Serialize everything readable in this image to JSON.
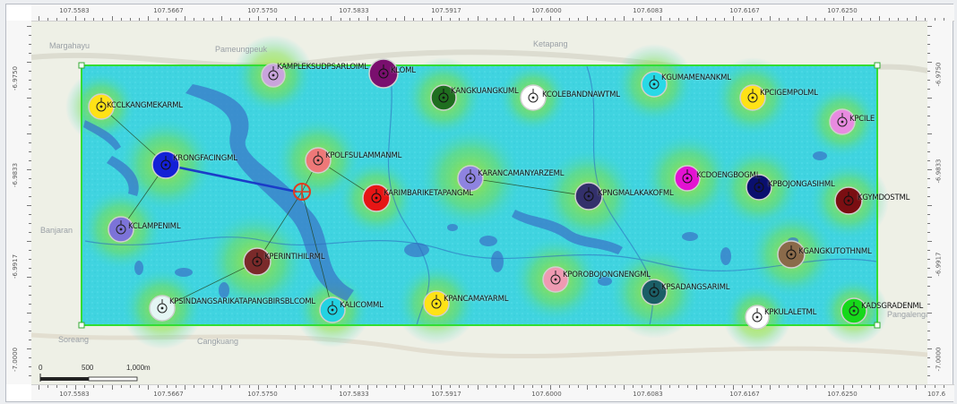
{
  "map": {
    "x_ticks": [
      "107.5583",
      "107.5667",
      "107.5750",
      "107.5833",
      "107.5917",
      "107.6000",
      "107.6083",
      "107.6167",
      "107.6250",
      "107.6"
    ],
    "y_ticks_left": [
      "-6.9750",
      "-6.9833",
      "-6.9917",
      "-7.0000"
    ],
    "y_ticks_right": [
      "-6.9750",
      "-6.9833",
      "-6.9917",
      "-7.0000"
    ],
    "place_names": [
      "Margahayu",
      "Pameungpeuk",
      "Ketapang",
      "Banjaran",
      "Soreang",
      "Cangkuang",
      "Pangalengan"
    ],
    "scale_bar": {
      "labels": [
        "0",
        "500",
        "1,000m"
      ]
    },
    "colors": {
      "boundary": "#33dd33",
      "gradient_high": "#9ee12a",
      "gradient_low": "#38d8e8",
      "water": "#3a78c8",
      "link_line": "#1a2fd8",
      "active_link": "#1b3cc8",
      "target_marker": "#e23b1e"
    },
    "stations": [
      {
        "name": "KCCLKANGMEKARML",
        "color": "#ffe216"
      },
      {
        "name": "KAMPLEKSUDPSARLOIML",
        "color": "#c9a4dc"
      },
      {
        "name": "KLOML",
        "color": "#7a0f6e"
      },
      {
        "name": "KANGKUANGKUML",
        "color": "#1f6e1f"
      },
      {
        "name": "KCOLEBANDNAWTML",
        "color": "#ffffff"
      },
      {
        "name": "KGUMAMENANKML",
        "color": "#28d9e6"
      },
      {
        "name": "KPCIGEMPOLML",
        "color": "#ffe216"
      },
      {
        "name": "KPCILE",
        "color": "#e88be0"
      },
      {
        "name": "KRONGFACINGML",
        "color": "#1420d6"
      },
      {
        "name": "KPOLFSULAMMANML",
        "color": "#ee7878"
      },
      {
        "name": "KARIMBARIKETAPANGML",
        "color": "#e61515"
      },
      {
        "name": "KARANCAMANYARZEML",
        "color": "#8e83e0"
      },
      {
        "name": "KPNGMALAKAKOFML",
        "color": "#33306b"
      },
      {
        "name": "KCDOENGBOGML",
        "color": "#e412d2"
      },
      {
        "name": "KPBOJONGASIHML",
        "color": "#0a0f6e"
      },
      {
        "name": "KGYMDOSTML",
        "color": "#7a0e12"
      },
      {
        "name": "KCLAMPENIML",
        "color": "#7c73d8"
      },
      {
        "name": "KPERINTIHILRML",
        "color": "#7a2a2a"
      },
      {
        "name": "KPSINDANGSARIKATAPANGBIRSBLCOML",
        "color": "#e4f6f4"
      },
      {
        "name": "KALICOMML",
        "color": "#23d2e2"
      },
      {
        "name": "KPANCAMAYARML",
        "color": "#ffe216"
      },
      {
        "name": "KPOROBOJONGNENGML",
        "color": "#ef9ab2"
      },
      {
        "name": "KPSADANGSARIML",
        "color": "#1b5e66"
      },
      {
        "name": "KGANGKUTOTHNML",
        "color": "#8a6a4a"
      },
      {
        "name": "KPKULALETML",
        "color": "#ffffff"
      },
      {
        "name": "KADSGRADENML",
        "color": "#16d81a"
      }
    ]
  }
}
